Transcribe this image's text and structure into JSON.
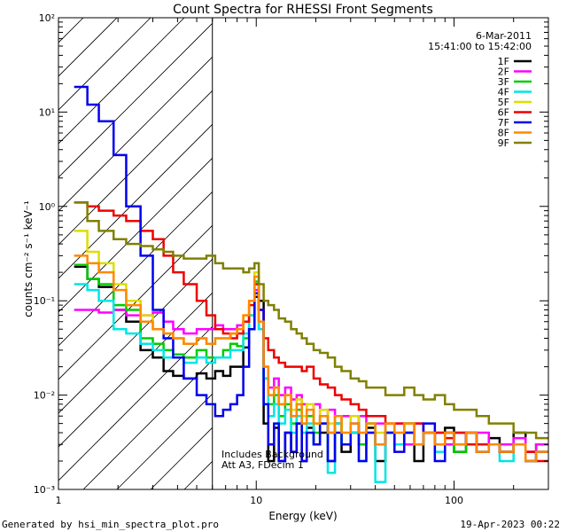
{
  "chart_data": {
    "type": "line",
    "title": "Count Spectra for RHESSI Front Segments",
    "xlabel": "Energy (keV)",
    "ylabel": "counts cm⁻² s⁻¹ keV⁻¹",
    "xscale": "log",
    "yscale": "log",
    "xlim": [
      1,
      300
    ],
    "ylim": [
      0.001,
      100
    ],
    "x_ticks": [
      {
        "value": 1,
        "label": "1"
      },
      {
        "value": 10,
        "label": "10"
      },
      {
        "value": 100,
        "label": "100"
      }
    ],
    "y_ticks": [
      {
        "value": 0.001,
        "label": "10⁻³"
      },
      {
        "value": 0.01,
        "label": "10⁻²"
      },
      {
        "value": 0.1,
        "label": "10⁻¹"
      },
      {
        "value": 1,
        "label": "10⁰"
      },
      {
        "value": 10,
        "label": "10¹"
      },
      {
        "value": 100,
        "label": "10²"
      }
    ],
    "date": "6-Mar-2011",
    "time_range": "15:41:00 to 15:42:00",
    "threshold_energy_kev": 6,
    "annotations": [
      "Includes Background",
      "Att A3, FDecim 1"
    ],
    "bin_edges": [
      1.2,
      1.4,
      1.6,
      1.9,
      2.2,
      2.6,
      3.0,
      3.4,
      3.8,
      4.3,
      5.0,
      5.6,
      6.2,
      6.8,
      7.4,
      8.0,
      8.6,
      9.2,
      9.8,
      10.3,
      10.9,
      11.5,
      12.3,
      13.0,
      14.0,
      15.0,
      16.0,
      17.0,
      18.0,
      19.5,
      21.0,
      23.0,
      25.0,
      27.0,
      30.0,
      33.0,
      36.0,
      40.0,
      45.0,
      50.0,
      56.0,
      63.0,
      70.0,
      80.0,
      90.0,
      100.0,
      115.0,
      130.0,
      150.0,
      170.0,
      200.0,
      230.0,
      260.0,
      300.0
    ],
    "series": [
      {
        "name": "1F",
        "color": "#000000",
        "values": [
          0.23,
          0.17,
          0.14,
          0.08,
          0.06,
          0.03,
          0.025,
          0.018,
          0.016,
          0.015,
          0.017,
          0.015,
          0.018,
          0.016,
          0.02,
          0.02,
          0.032,
          0.05,
          0.11,
          0.1,
          0.005,
          0.002,
          0.0045,
          0.002,
          0.004,
          0.0025,
          0.005,
          0.002,
          0.0045,
          0.003,
          0.004,
          0.002,
          0.005,
          0.0025,
          0.004,
          0.003,
          0.0045,
          0.002,
          0.004,
          0.003,
          0.005,
          0.002,
          0.004,
          0.003,
          0.0045,
          0.0025,
          0.004,
          0.003,
          0.0035,
          0.0025,
          0.004,
          0.0025,
          0.003
        ]
      },
      {
        "name": "2F",
        "color": "#ff00ff",
        "values": [
          0.08,
          0.08,
          0.075,
          0.08,
          0.07,
          0.07,
          0.075,
          0.06,
          0.05,
          0.045,
          0.05,
          0.05,
          0.055,
          0.05,
          0.05,
          0.055,
          0.06,
          0.07,
          0.13,
          0.05,
          0.02,
          0.012,
          0.015,
          0.01,
          0.012,
          0.009,
          0.01,
          0.008,
          0.006,
          0.008,
          0.005,
          0.007,
          0.005,
          0.006,
          0.004,
          0.006,
          0.004,
          0.005,
          0.004,
          0.005,
          0.003,
          0.005,
          0.004,
          0.004,
          0.003,
          0.004,
          0.003,
          0.004,
          0.003,
          0.003,
          0.0035,
          0.0025,
          0.003
        ]
      },
      {
        "name": "3F",
        "color": "#00cc00",
        "values": [
          0.24,
          0.17,
          0.15,
          0.09,
          0.08,
          0.04,
          0.035,
          0.03,
          0.027,
          0.025,
          0.03,
          0.025,
          0.025,
          0.03,
          0.035,
          0.033,
          0.04,
          0.07,
          0.16,
          0.06,
          0.015,
          0.008,
          0.01,
          0.006,
          0.008,
          0.005,
          0.007,
          0.005,
          0.006,
          0.004,
          0.006,
          0.004,
          0.005,
          0.003,
          0.006,
          0.003,
          0.005,
          0.003,
          0.004,
          0.003,
          0.005,
          0.003,
          0.004,
          0.003,
          0.004,
          0.0025,
          0.004,
          0.003,
          0.003,
          0.0025,
          0.003,
          0.002,
          0.0025
        ]
      },
      {
        "name": "4F",
        "color": "#00e5e5",
        "values": [
          0.15,
          0.13,
          0.1,
          0.05,
          0.045,
          0.035,
          0.03,
          0.025,
          0.025,
          0.022,
          0.025,
          0.022,
          0.025,
          0.025,
          0.03,
          0.03,
          0.045,
          0.07,
          0.15,
          0.05,
          0.015,
          0.006,
          0.008,
          0.005,
          0.007,
          0.004,
          0.006,
          0.004,
          0.005,
          0.003,
          0.005,
          0.0015,
          0.005,
          0.003,
          0.004,
          0.002,
          0.005,
          0.0012,
          0.004,
          0.003,
          0.004,
          0.003,
          0.004,
          0.0025,
          0.004,
          0.003,
          0.003,
          0.0025,
          0.003,
          0.002,
          0.003,
          0.002,
          0.0025
        ]
      },
      {
        "name": "5F",
        "color": "#dddd00",
        "values": [
          0.55,
          0.33,
          0.25,
          0.15,
          0.1,
          0.07,
          0.05,
          0.045,
          0.04,
          0.035,
          0.04,
          0.035,
          0.04,
          0.04,
          0.045,
          0.05,
          0.07,
          0.1,
          0.2,
          0.06,
          0.02,
          0.01,
          0.012,
          0.008,
          0.01,
          0.007,
          0.009,
          0.006,
          0.008,
          0.005,
          0.007,
          0.005,
          0.006,
          0.004,
          0.006,
          0.004,
          0.005,
          0.004,
          0.005,
          0.004,
          0.005,
          0.003,
          0.004,
          0.003,
          0.004,
          0.003,
          0.004,
          0.003,
          0.003,
          0.0025,
          0.003,
          0.002,
          0.0025
        ]
      },
      {
        "name": "6F",
        "color": "#ee0000",
        "values": [
          1.1,
          1.0,
          0.9,
          0.8,
          0.7,
          0.55,
          0.45,
          0.3,
          0.2,
          0.15,
          0.1,
          0.07,
          0.05,
          0.045,
          0.04,
          0.045,
          0.06,
          0.09,
          0.15,
          0.08,
          0.04,
          0.03,
          0.025,
          0.022,
          0.02,
          0.02,
          0.02,
          0.018,
          0.02,
          0.015,
          0.013,
          0.012,
          0.01,
          0.009,
          0.008,
          0.007,
          0.006,
          0.006,
          0.005,
          0.005,
          0.004,
          0.005,
          0.004,
          0.004,
          0.0035,
          0.004,
          0.003,
          0.003,
          0.003,
          0.0025,
          0.003,
          0.0025,
          0.002
        ]
      },
      {
        "name": "7F",
        "color": "#0000ee",
        "values": [
          18.5,
          12.0,
          8.0,
          3.5,
          1.0,
          0.3,
          0.08,
          0.04,
          0.025,
          0.015,
          0.01,
          0.008,
          0.006,
          0.007,
          0.008,
          0.01,
          0.02,
          0.05,
          0.12,
          0.08,
          0.008,
          0.003,
          0.005,
          0.002,
          0.004,
          0.0025,
          0.005,
          0.002,
          0.004,
          0.003,
          0.005,
          0.002,
          0.004,
          0.003,
          0.005,
          0.002,
          0.004,
          0.003,
          0.004,
          0.0025,
          0.004,
          0.003,
          0.005,
          0.002,
          0.004,
          0.003,
          0.004,
          0.0025,
          0.003,
          0.0025,
          0.003,
          0.002,
          0.0025
        ]
      },
      {
        "name": "8F",
        "color": "#ff8800",
        "values": [
          0.3,
          0.25,
          0.2,
          0.13,
          0.09,
          0.06,
          0.05,
          0.045,
          0.04,
          0.035,
          0.04,
          0.035,
          0.04,
          0.04,
          0.045,
          0.05,
          0.07,
          0.1,
          0.18,
          0.06,
          0.02,
          0.01,
          0.012,
          0.008,
          0.01,
          0.006,
          0.008,
          0.005,
          0.007,
          0.005,
          0.006,
          0.004,
          0.006,
          0.004,
          0.005,
          0.004,
          0.005,
          0.003,
          0.005,
          0.004,
          0.005,
          0.003,
          0.004,
          0.003,
          0.004,
          0.003,
          0.004,
          0.0025,
          0.003,
          0.0025,
          0.003,
          0.002,
          0.0025
        ]
      },
      {
        "name": "9F",
        "color": "#808000",
        "values": [
          1.1,
          0.7,
          0.55,
          0.45,
          0.4,
          0.38,
          0.35,
          0.33,
          0.3,
          0.28,
          0.28,
          0.3,
          0.25,
          0.22,
          0.22,
          0.22,
          0.2,
          0.22,
          0.25,
          0.15,
          0.1,
          0.09,
          0.08,
          0.065,
          0.06,
          0.05,
          0.045,
          0.04,
          0.035,
          0.03,
          0.028,
          0.025,
          0.02,
          0.018,
          0.015,
          0.014,
          0.012,
          0.012,
          0.01,
          0.01,
          0.012,
          0.01,
          0.009,
          0.01,
          0.008,
          0.007,
          0.007,
          0.006,
          0.005,
          0.005,
          0.004,
          0.004,
          0.0035
        ]
      }
    ]
  },
  "footer": {
    "left": "Generated by hsi_min_spectra_plot.pro",
    "right": "19-Apr-2023 00:22"
  }
}
